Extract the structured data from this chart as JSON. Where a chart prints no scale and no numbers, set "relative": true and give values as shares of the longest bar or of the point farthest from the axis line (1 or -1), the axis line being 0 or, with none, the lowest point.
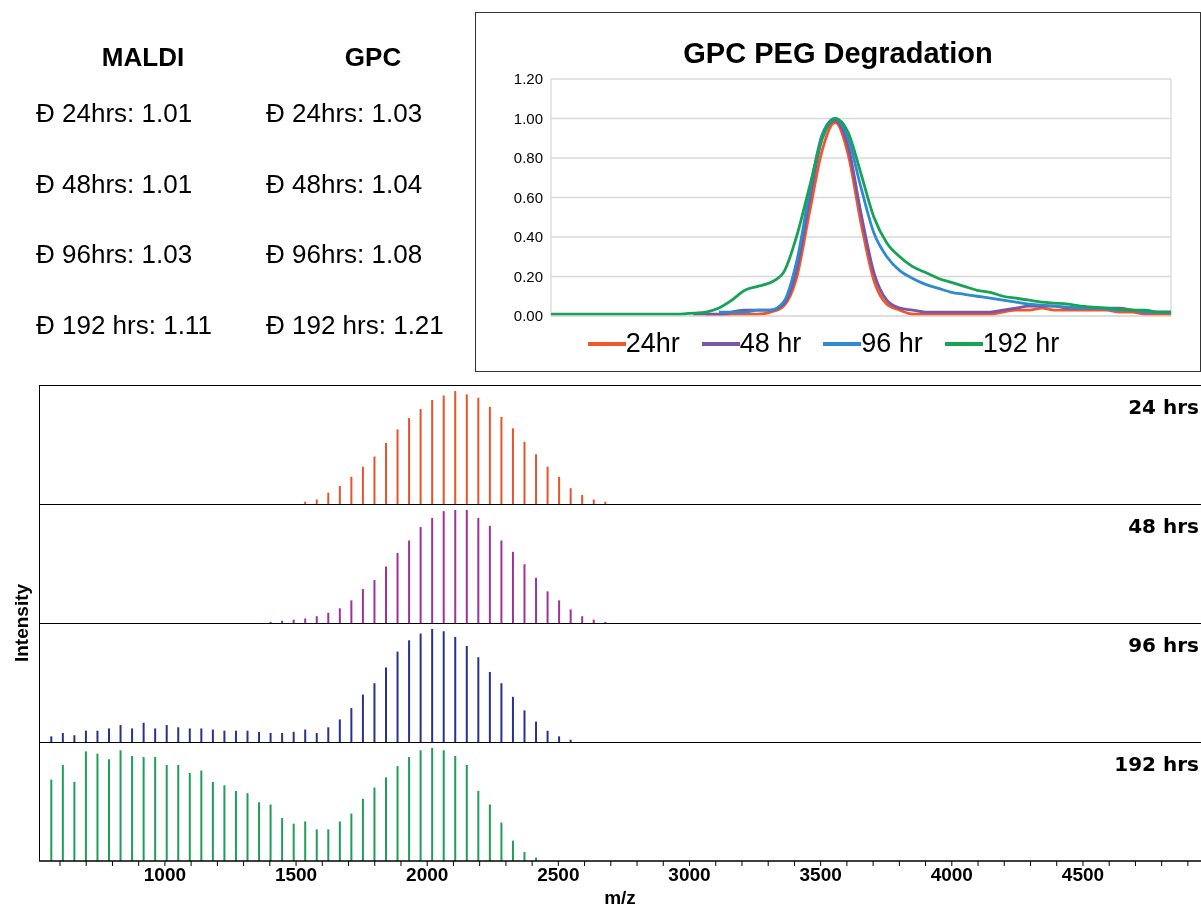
{
  "chart_data": [
    {
      "type": "other",
      "annotations": [
        "MALDI",
        "GPC",
        "Đ 24hrs: 1.01",
        "Đ 24hrs: 1.03",
        "Đ 48hrs: 1.01",
        "Đ 48hrs: 1.04",
        "Đ 96hrs: 1.03",
        "Đ 96hrs: 1.08",
        "Đ 192 hrs: 1.11",
        "Đ 192 hrs: 1.21"
      ]
    },
    {
      "type": "line",
      "title": "GPC PEG Degradation",
      "categories": [
        null,
        null,
        null,
        null,
        null,
        null,
        null,
        null,
        null,
        null,
        null,
        null,
        null,
        null,
        null,
        null,
        null,
        null,
        null,
        null,
        null,
        null,
        null,
        null,
        null,
        null,
        null,
        null,
        null,
        null,
        null,
        null,
        null,
        null,
        null,
        null,
        null,
        null,
        null,
        null,
        null,
        null,
        null,
        null,
        null,
        null,
        null,
        null,
        null
      ],
      "ylim": [
        0,
        1.2
      ],
      "yticks": [
        {
          "value": 0,
          "label": "0.00"
        },
        {
          "value": 0.2,
          "label": "0.20"
        },
        {
          "value": 0.4,
          "label": "0.40"
        },
        {
          "value": 0.6,
          "label": "0.60"
        },
        {
          "value": 0.8,
          "label": "0.80"
        },
        {
          "value": 1,
          "label": "1.00"
        },
        {
          "value": 1.2,
          "label": "1.20"
        }
      ],
      "grid": true,
      "legend": "bottom",
      "tick_labels": "y",
      "series": [
        {
          "name": "24hr",
          "color": "#f0572a",
          "values": [
            null,
            null,
            null,
            null,
            null,
            null,
            null,
            null,
            null,
            null,
            null,
            null,
            0.0,
            0.0,
            0.01,
            0.01,
            0.01,
            0.02,
            0.05,
            0.19,
            0.52,
            0.84,
            0.98,
            0.82,
            0.47,
            0.18,
            0.06,
            0.03,
            0.01,
            0.01,
            0.01,
            0.01,
            0.01,
            0.01,
            0.01,
            0.02,
            0.03,
            0.03,
            0.04,
            0.03,
            0.03,
            0.03,
            0.03,
            0.03,
            0.02,
            0.02,
            0.01,
            0.01,
            0.01
          ]
        },
        {
          "name": "48 hr",
          "color": "#7b55a6",
          "values": [
            null,
            null,
            null,
            null,
            null,
            null,
            null,
            null,
            null,
            null,
            null,
            0.01,
            0.01,
            0.01,
            0.02,
            0.03,
            0.03,
            0.03,
            0.06,
            0.23,
            0.58,
            0.9,
            0.99,
            0.86,
            0.52,
            0.22,
            0.08,
            0.04,
            0.03,
            0.02,
            0.02,
            0.02,
            0.02,
            0.02,
            0.02,
            0.03,
            0.04,
            0.05,
            0.05,
            0.05,
            0.04,
            0.04,
            0.04,
            0.04,
            0.04,
            0.03,
            0.02,
            0.02,
            0.02
          ]
        },
        {
          "name": "96 hr",
          "color": "#2f8ad0",
          "values": [
            null,
            null,
            null,
            null,
            null,
            null,
            null,
            null,
            null,
            null,
            null,
            null,
            null,
            0.02,
            0.02,
            0.02,
            0.03,
            0.03,
            0.07,
            0.27,
            0.62,
            0.92,
            1.0,
            0.9,
            0.65,
            0.42,
            0.3,
            0.23,
            0.19,
            0.16,
            0.14,
            0.12,
            0.11,
            0.1,
            0.09,
            0.08,
            0.07,
            0.06,
            0.055,
            0.05,
            0.045,
            0.04,
            0.04,
            0.035,
            0.03,
            0.03,
            0.02,
            0.02,
            0.02
          ]
        },
        {
          "name": "192 hr",
          "color": "#17a355",
          "values": [
            0.01,
            0.01,
            0.01,
            0.01,
            0.01,
            0.01,
            0.01,
            0.01,
            0.01,
            0.01,
            0.01,
            0.015,
            0.02,
            0.04,
            0.08,
            0.13,
            0.15,
            0.17,
            0.22,
            0.4,
            0.65,
            0.9,
            1.0,
            0.93,
            0.72,
            0.5,
            0.37,
            0.3,
            0.25,
            0.22,
            0.19,
            0.17,
            0.15,
            0.13,
            0.12,
            0.1,
            0.09,
            0.08,
            0.07,
            0.065,
            0.06,
            0.05,
            0.045,
            0.04,
            0.035,
            0.03,
            0.03,
            0.02,
            0.02
          ]
        }
      ]
    },
    {
      "type": "bar",
      "relative": true,
      "xlim": [
        520,
        4950
      ],
      "tick_labels": false,
      "series": [
        {
          "name": "24 hrs",
          "color": "#e8532a",
          "x": [
            1534,
            1578,
            1622,
            1666,
            1710,
            1754,
            1798,
            1842,
            1886,
            1930,
            1974,
            2018,
            2062,
            2106,
            2150,
            2194,
            2238,
            2282,
            2326,
            2370,
            2414,
            2458,
            2502,
            2546,
            2590,
            2634,
            2678
          ],
          "values": [
            0.02,
            0.04,
            0.1,
            0.16,
            0.24,
            0.33,
            0.42,
            0.54,
            0.66,
            0.76,
            0.84,
            0.92,
            0.96,
            1,
            0.97,
            0.94,
            0.86,
            0.77,
            0.67,
            0.55,
            0.44,
            0.33,
            0.24,
            0.14,
            0.08,
            0.04,
            0.02
          ]
        }
      ]
    },
    {
      "type": "bar",
      "relative": true,
      "xlim": [
        520,
        4950
      ],
      "tick_labels": false,
      "ylabel": "Intensity",
      "series": [
        {
          "name": "48 hrs",
          "color": "#a0309e",
          "x": [
            1402,
            1446,
            1490,
            1534,
            1578,
            1622,
            1666,
            1710,
            1754,
            1798,
            1842,
            1886,
            1930,
            1974,
            2018,
            2062,
            2106,
            2150,
            2194,
            2238,
            2282,
            2326,
            2370,
            2414,
            2458,
            2502,
            2546,
            2590,
            2634,
            2678
          ],
          "values": [
            0.01,
            0.02,
            0.03,
            0.04,
            0.06,
            0.09,
            0.13,
            0.2,
            0.3,
            0.38,
            0.5,
            0.62,
            0.73,
            0.85,
            0.93,
            0.99,
            1,
            1,
            0.93,
            0.86,
            0.73,
            0.63,
            0.52,
            0.4,
            0.28,
            0.2,
            0.12,
            0.06,
            0.03,
            0.01
          ]
        }
      ]
    },
    {
      "type": "bar",
      "relative": true,
      "xlim": [
        520,
        4950
      ],
      "tick_labels": false,
      "series": [
        {
          "name": "96 hrs",
          "color": "#27328f",
          "x": [
            566,
            610,
            654,
            698,
            742,
            786,
            830,
            874,
            918,
            962,
            1006,
            1050,
            1094,
            1138,
            1182,
            1226,
            1270,
            1314,
            1358,
            1402,
            1446,
            1490,
            1534,
            1578,
            1622,
            1666,
            1710,
            1754,
            1798,
            1842,
            1886,
            1930,
            1974,
            2018,
            2062,
            2106,
            2150,
            2194,
            2238,
            2282,
            2326,
            2370,
            2414,
            2458,
            2502,
            2546
          ],
          "values": [
            0.05,
            0.08,
            0.06,
            0.1,
            0.1,
            0.12,
            0.15,
            0.12,
            0.17,
            0.12,
            0.15,
            0.13,
            0.12,
            0.12,
            0.11,
            0.1,
            0.1,
            0.1,
            0.09,
            0.08,
            0.08,
            0.09,
            0.11,
            0.08,
            0.13,
            0.2,
            0.3,
            0.42,
            0.52,
            0.66,
            0.8,
            0.9,
            0.96,
            1,
            0.98,
            0.93,
            0.85,
            0.75,
            0.62,
            0.52,
            0.4,
            0.28,
            0.18,
            0.1,
            0.05,
            0.02
          ]
        }
      ]
    },
    {
      "type": "bar",
      "relative": true,
      "xlim": [
        520,
        4950
      ],
      "tick_labels": "x",
      "xlabel": "m/z",
      "xticks": [
        {
          "value": 600,
          "label": null
        },
        {
          "value": 700,
          "label": null
        },
        {
          "value": 800,
          "label": null
        },
        {
          "value": 900,
          "label": null
        },
        1000,
        {
          "value": 1100,
          "label": null
        },
        {
          "value": 1200,
          "label": null
        },
        {
          "value": 1300,
          "label": null
        },
        {
          "value": 1400,
          "label": null
        },
        1500,
        {
          "value": 1600,
          "label": null
        },
        {
          "value": 1700,
          "label": null
        },
        {
          "value": 1800,
          "label": null
        },
        {
          "value": 1900,
          "label": null
        },
        2000,
        {
          "value": 2100,
          "label": null
        },
        {
          "value": 2200,
          "label": null
        },
        {
          "value": 2300,
          "label": null
        },
        {
          "value": 2400,
          "label": null
        },
        2500,
        {
          "value": 2600,
          "label": null
        },
        {
          "value": 2700,
          "label": null
        },
        {
          "value": 2800,
          "label": null
        },
        {
          "value": 2900,
          "label": null
        },
        3000,
        {
          "value": 3100,
          "label": null
        },
        {
          "value": 3200,
          "label": null
        },
        {
          "value": 3300,
          "label": null
        },
        {
          "value": 3400,
          "label": null
        },
        3500,
        {
          "value": 3600,
          "label": null
        },
        {
          "value": 3700,
          "label": null
        },
        {
          "value": 3800,
          "label": null
        },
        {
          "value": 3900,
          "label": null
        },
        4000,
        {
          "value": 4100,
          "label": null
        },
        {
          "value": 4200,
          "label": null
        },
        {
          "value": 4300,
          "label": null
        },
        {
          "value": 4400,
          "label": null
        },
        4500,
        {
          "value": 4600,
          "label": null
        },
        {
          "value": 4700,
          "label": null
        },
        {
          "value": 4800,
          "label": null
        },
        {
          "value": 4900,
          "label": null
        }
      ],
      "series": [
        {
          "name": "192 hrs",
          "color": "#1f9e5a",
          "x": [
            566,
            610,
            654,
            698,
            742,
            786,
            830,
            874,
            918,
            962,
            1006,
            1050,
            1094,
            1138,
            1182,
            1226,
            1270,
            1314,
            1358,
            1402,
            1446,
            1490,
            1534,
            1578,
            1622,
            1666,
            1710,
            1754,
            1798,
            1842,
            1886,
            1930,
            1974,
            2018,
            2062,
            2106,
            2150,
            2194,
            2238,
            2282,
            2326,
            2370,
            2414
          ],
          "values": [
            0.72,
            0.85,
            0.7,
            0.97,
            0.95,
            0.9,
            0.98,
            0.93,
            0.92,
            0.92,
            0.85,
            0.85,
            0.78,
            0.8,
            0.7,
            0.67,
            0.62,
            0.6,
            0.52,
            0.5,
            0.38,
            0.33,
            0.35,
            0.28,
            0.28,
            0.35,
            0.42,
            0.55,
            0.65,
            0.74,
            0.84,
            0.92,
            0.98,
            1,
            0.98,
            0.93,
            0.85,
            0.62,
            0.5,
            0.34,
            0.18,
            0.08,
            0.03
          ]
        }
      ]
    }
  ]
}
